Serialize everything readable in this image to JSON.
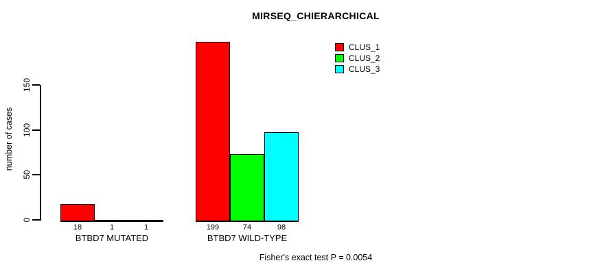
{
  "chart_data": {
    "type": "bar",
    "title": "MIRSEQ_CHIERARCHICAL",
    "xlabel": "",
    "ylabel": "number of cases",
    "categories": [
      "BTBD7 MUTATED",
      "BTBD7 WILD-TYPE"
    ],
    "series": [
      {
        "name": "CLUS_1",
        "color": "#ff0000",
        "values": [
          18,
          199
        ]
      },
      {
        "name": "CLUS_2",
        "color": "#00ff00",
        "values": [
          1,
          74
        ]
      },
      {
        "name": "CLUS_3",
        "color": "#00ffff",
        "values": [
          1,
          98
        ]
      }
    ],
    "yticks": [
      0,
      50,
      100,
      150
    ],
    "ylim": [
      0,
      205
    ],
    "grid": false,
    "legend_position": "top-right",
    "bar_border_color": "#000000",
    "annotation": "Fisher's exact test P = 0.0054"
  }
}
